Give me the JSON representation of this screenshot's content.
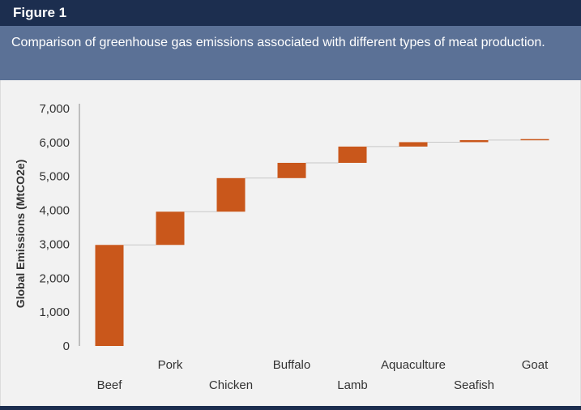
{
  "figure_label": "Figure 1",
  "chart_data": {
    "type": "waterfall",
    "title": "Comparison of greenhouse gas emissions associated with different types of meat production.",
    "ylabel": "Global Emissions (MtCO2e)",
    "xlabel": "",
    "ylim": [
      0,
      7000
    ],
    "yticks": [
      0,
      1000,
      2000,
      3000,
      4000,
      5000,
      6000,
      7000
    ],
    "ytick_labels": [
      "0",
      "1,000",
      "2,000",
      "3,000",
      "4,000",
      "5,000",
      "6,000",
      "7,000"
    ],
    "grid": false,
    "legend": "none",
    "categories": [
      "Beef",
      "Pork",
      "Chicken",
      "Buffalo",
      "Lamb",
      "Aquaculture",
      "Seafish",
      "Goat"
    ],
    "values": [
      2980,
      980,
      990,
      450,
      480,
      130,
      60,
      30
    ],
    "colors": {
      "bar": "#c9571b",
      "connector": "#c8c8c8",
      "axis": "#8a8a8a",
      "text": "#333333"
    }
  }
}
